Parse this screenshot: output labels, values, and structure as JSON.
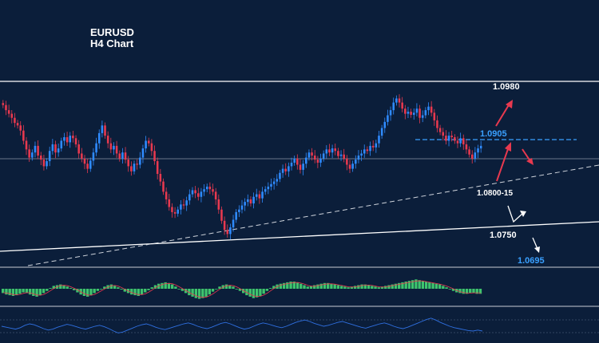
{
  "chart_data": {
    "type": "candlestick",
    "title": "EURUSD",
    "subtitle": "H4 Chart",
    "colors": {
      "background": "#0b1e3a",
      "bull": "#2f8bff",
      "bear": "#e8394f",
      "label": "#ffffff",
      "accent": "#3aa0ff",
      "arrow": "#e8394f"
    },
    "price_range": [
      1.065,
      1.101
    ],
    "candles_close": [
      1.0965,
      1.0955,
      1.0948,
      1.094,
      1.093,
      1.0925,
      1.0915,
      1.0895,
      1.0878,
      1.0862,
      1.0872,
      1.0885,
      1.0866,
      1.0858,
      1.0845,
      1.0855,
      1.0875,
      1.0888,
      1.0872,
      1.088,
      1.0895,
      1.0902,
      1.0892,
      1.0905,
      1.09,
      1.0888,
      1.087,
      1.086,
      1.085,
      1.084,
      1.0856,
      1.0872,
      1.089,
      1.091,
      1.0925,
      1.0905,
      1.089,
      1.0878,
      1.0885,
      1.087,
      1.086,
      1.0872,
      1.0858,
      1.0845,
      1.0835,
      1.085,
      1.0848,
      1.0862,
      1.088,
      1.0895,
      1.089,
      1.0875,
      1.0855,
      1.083,
      1.0815,
      1.0795,
      1.078,
      1.0765,
      1.0755,
      1.0752,
      1.076,
      1.077,
      1.0768,
      1.0778,
      1.079,
      1.0798,
      1.0792,
      1.0785,
      1.0795,
      1.08,
      1.0805,
      1.08,
      1.0795,
      1.078,
      1.076,
      1.0738,
      1.072,
      1.0712,
      1.0725,
      1.074,
      1.0755,
      1.076,
      1.0768,
      1.0775,
      1.078,
      1.0772,
      1.0785,
      1.079,
      1.0782,
      1.0795,
      1.08,
      1.0805,
      1.081,
      1.0815,
      1.082,
      1.0832,
      1.084,
      1.0835,
      1.0845,
      1.0852,
      1.086,
      1.0848,
      1.0838,
      1.085,
      1.0862,
      1.0872,
      1.0866,
      1.0858,
      1.0852,
      1.086,
      1.087,
      1.0878,
      1.0872,
      1.088,
      1.0875,
      1.0865,
      1.0868,
      1.086,
      1.0848,
      1.084,
      1.085,
      1.0858,
      1.0866,
      1.087,
      1.0878,
      1.0875,
      1.0885,
      1.0882,
      1.089,
      1.0905,
      1.092,
      1.0932,
      1.0945,
      1.0955,
      1.097,
      1.0978,
      1.097,
      1.0958,
      1.0948,
      1.0952,
      1.0946,
      1.095,
      1.0958,
      1.094,
      1.0945,
      1.0955,
      1.0962,
      1.095,
      1.0935,
      1.092,
      1.0912,
      1.0905,
      1.0895,
      1.0905,
      1.0902,
      1.0895,
      1.089,
      1.09,
      1.0888,
      1.0878,
      1.0868,
      1.086,
      1.0872,
      1.088,
      1.0885
    ],
    "levels": [
      {
        "label": "1.0980",
        "price": 1.098,
        "color": "#ffffff"
      },
      {
        "label": "1.0905",
        "price": 1.0905,
        "color": "#3aa0ff"
      },
      {
        "label": "1.0800-15",
        "price": 1.0808,
        "color": "#ffffff"
      },
      {
        "label": "1.0750",
        "price": 1.075,
        "color": "#ffffff"
      },
      {
        "label": "1.0695",
        "price": 1.0695,
        "color": "#3aa0ff"
      }
    ],
    "macd_histogram": [
      -0.6,
      -0.8,
      -0.9,
      -1.0,
      -0.9,
      -0.7,
      -0.5,
      -0.6,
      -0.8,
      -1.0,
      -1.1,
      -0.9,
      -0.6,
      -0.3,
      0.1,
      0.4,
      0.5,
      0.6,
      0.5,
      0.3,
      0.1,
      -0.2,
      -0.5,
      -0.8,
      -1.0,
      -1.1,
      -0.9,
      -0.6,
      -0.3,
      0.0,
      0.3,
      0.5,
      0.6,
      0.4,
      0.2,
      -0.1,
      -0.4,
      -0.6,
      -0.8,
      -0.9,
      -1.0,
      -0.8,
      -0.5,
      -0.2,
      0.2,
      0.5,
      0.7,
      0.8,
      0.9,
      0.8,
      0.6,
      0.3,
      0.0,
      -0.3,
      -0.6,
      -0.9,
      -1.1,
      -1.3,
      -1.4,
      -1.3,
      -1.1,
      -0.8,
      -0.4,
      0.0,
      0.3,
      0.5,
      0.6,
      0.5,
      0.3,
      0.0,
      -0.3,
      -0.6,
      -0.9,
      -1.1,
      -1.3,
      -1.2,
      -1.0,
      -0.7,
      -0.3,
      0.1,
      0.4,
      0.6,
      0.7,
      0.8,
      0.9,
      1.0,
      1.0,
      0.9,
      0.7,
      0.5,
      0.3,
      0.4,
      0.5,
      0.6,
      0.7,
      0.8,
      0.8,
      0.7,
      0.6,
      0.5,
      0.4,
      0.3,
      0.2,
      0.3,
      0.4,
      0.5,
      0.6,
      0.6,
      0.5,
      0.4,
      0.3,
      0.2,
      0.3,
      0.4,
      0.5,
      0.6,
      0.7,
      0.8,
      0.9,
      1.0,
      1.1,
      1.2,
      1.3,
      1.2,
      1.1,
      1.0,
      0.9,
      0.8,
      0.7,
      0.6,
      0.4,
      0.2,
      0.0,
      -0.3,
      -0.5,
      -0.6,
      -0.7,
      -0.7,
      -0.6,
      -0.6,
      -0.7,
      -0.7
    ],
    "rsi": [
      50,
      48,
      46,
      44,
      47,
      52,
      55,
      53,
      49,
      45,
      42,
      44,
      48,
      51,
      54,
      52,
      49,
      46,
      44,
      47,
      50,
      52,
      49,
      45,
      40,
      36,
      38,
      42,
      46,
      50,
      53,
      55,
      52,
      48,
      45,
      43,
      46,
      49,
      52,
      55,
      57,
      54,
      50,
      47,
      45,
      48,
      52,
      56,
      58,
      55,
      51,
      47,
      44,
      46,
      50,
      54,
      57,
      55,
      52,
      49,
      47,
      50,
      54,
      58,
      61,
      63,
      60,
      56,
      53,
      50,
      52,
      55,
      58,
      60,
      57,
      54,
      51,
      48,
      46,
      49,
      52,
      55,
      57,
      54,
      50,
      47,
      45,
      48,
      52,
      56,
      60,
      64,
      67,
      63,
      58,
      54,
      50,
      47,
      45,
      43,
      41,
      40,
      42,
      40
    ],
    "trendlines": "rising dashed support, long white support line, horizontal resistance"
  }
}
